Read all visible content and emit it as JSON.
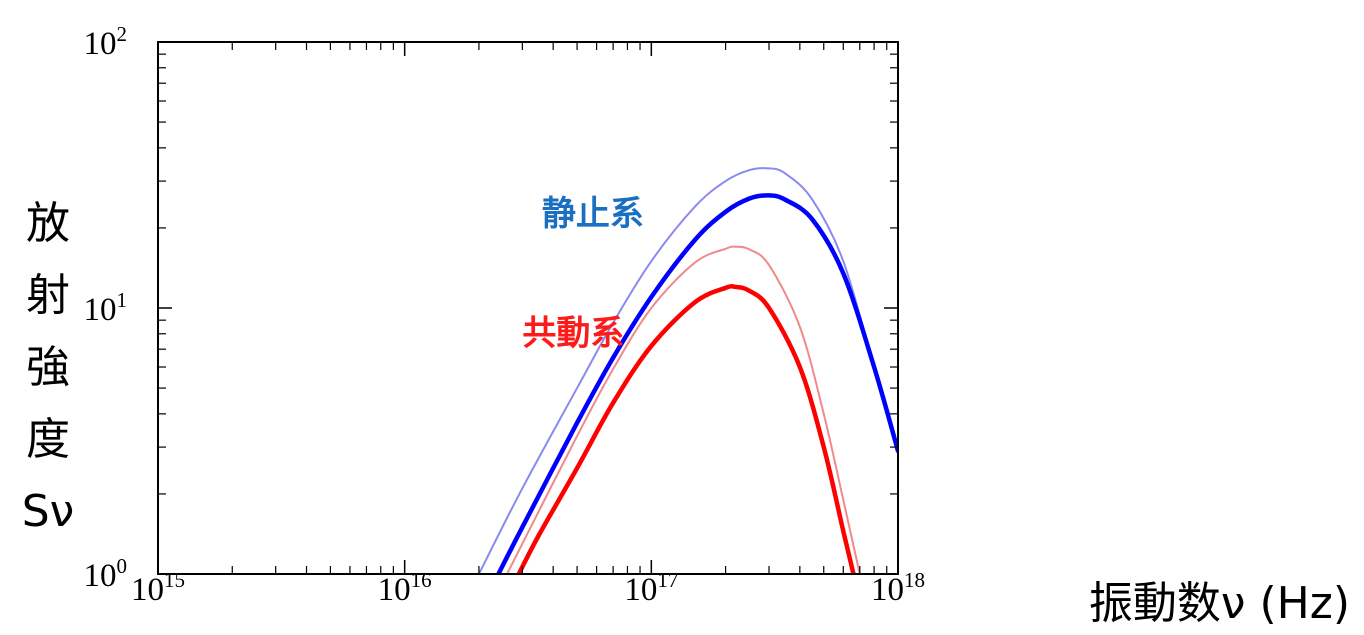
{
  "chart_data": {
    "type": "line",
    "title": "",
    "xlabel": "振動数ν (Hz)",
    "ylabel": [
      "放",
      "射",
      "強",
      "度",
      "Sν"
    ],
    "xscale": "log",
    "yscale": "log",
    "xlim": [
      1000000000000000.0,
      1e+18
    ],
    "ylim": [
      1,
      100
    ],
    "grid": false,
    "xticks": [
      {
        "value": 1000000000000000.0,
        "base": "10",
        "exp": "15"
      },
      {
        "value": 1e+16,
        "base": "10",
        "exp": "16"
      },
      {
        "value": 1e+17,
        "base": "10",
        "exp": "17"
      },
      {
        "value": 1e+18,
        "base": "10",
        "exp": "18"
      }
    ],
    "yticks": [
      {
        "value": 1,
        "base": "10",
        "exp": "0"
      },
      {
        "value": 10,
        "base": "10",
        "exp": "1"
      },
      {
        "value": 100,
        "base": "10",
        "exp": "2"
      }
    ],
    "series": [
      {
        "color": "#8a8af0",
        "thin": true,
        "x": [
          2e+16,
          3e+16,
          5e+16,
          7e+16,
          1e+17,
          1.5e+17,
          2e+17,
          2.5e+17,
          3e+17,
          3.5e+17,
          4.5e+17,
          6e+17,
          8e+17,
          1e+18
        ],
        "y": [
          1.0,
          2.1,
          5.0,
          8.8,
          15.0,
          24.0,
          30.0,
          33.0,
          33.5,
          32.0,
          25.5,
          15.0,
          6.0,
          2.9
        ]
      },
      {
        "color": "#0000ff",
        "thin": false,
        "x": [
          2.4e+16,
          3e+16,
          5e+16,
          7e+16,
          1e+17,
          1.5e+17,
          2e+17,
          2.5e+17,
          3e+17,
          3.5e+17,
          4.5e+17,
          6e+17,
          8e+17,
          1e+18
        ],
        "y": [
          1.0,
          1.5,
          3.7,
          6.5,
          11.0,
          18.0,
          23.0,
          25.8,
          26.5,
          25.5,
          21.5,
          13.5,
          6.0,
          2.9
        ]
      },
      {
        "color": "#f08a8a",
        "thin": true,
        "x": [
          2.6e+16,
          3e+16,
          5e+16,
          7e+16,
          1e+17,
          1.5e+17,
          2e+17,
          2.2e+17,
          2.5e+17,
          3e+17,
          4e+17,
          5e+17,
          6e+17,
          7e+17
        ],
        "y": [
          1.0,
          1.3,
          3.3,
          5.9,
          10.0,
          14.8,
          16.7,
          17.0,
          16.6,
          14.5,
          8.5,
          4.0,
          1.9,
          1.0
        ]
      },
      {
        "color": "#ff0000",
        "thin": false,
        "x": [
          2.9e+16,
          3.5e+16,
          5e+16,
          7e+16,
          1e+17,
          1.5e+17,
          2e+17,
          2.2e+17,
          2.5e+17,
          3e+17,
          4e+17,
          5e+17,
          6e+17,
          6.6e+17
        ],
        "y": [
          1.0,
          1.4,
          2.5,
          4.4,
          7.2,
          10.5,
          11.9,
          12.0,
          11.6,
          10.0,
          6.0,
          3.0,
          1.45,
          1.0
        ]
      }
    ],
    "annotations": [
      {
        "text": "静止系",
        "color": "#1a6fc0",
        "x": 3.6e+16,
        "y": 20.5
      },
      {
        "text": "共動系",
        "color": "#ff1a1a",
        "x": 3e+16,
        "y": 7.3
      }
    ]
  }
}
